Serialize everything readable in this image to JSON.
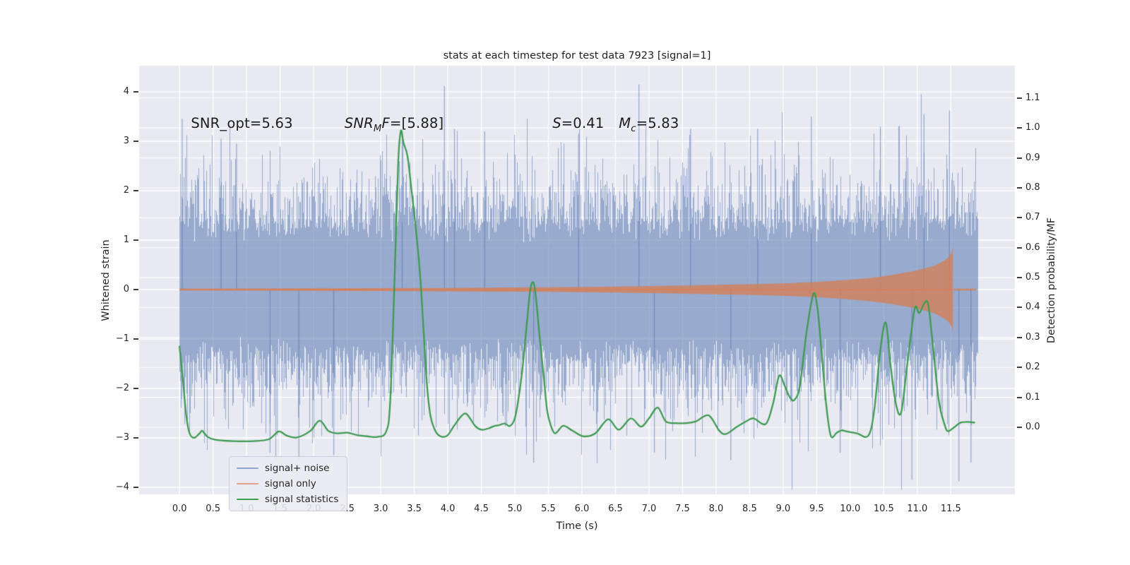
{
  "chart_data": {
    "type": "line",
    "title": "stats at each timestep for test data 7923 [signal=1]",
    "xlabel": "Time (s)",
    "ylabel_left": "Whitened strain",
    "ylabel_right": "Detection probability/MF",
    "axes": {
      "xlim": [
        -0.602,
        12.455
      ],
      "ylim_left": [
        -4.143,
        4.529
      ],
      "ylim_right": [
        -0.224,
        1.208
      ],
      "grid": true,
      "panel_bg": "#e9e9f2",
      "grid_color": "#ffffff",
      "figure_bg": "#ffffff"
    },
    "x_ticks": {
      "values": [
        0,
        0.5,
        1,
        1.5,
        2,
        2.5,
        3,
        3.5,
        4,
        4.5,
        5,
        5.5,
        6,
        6.5,
        7,
        7.5,
        8,
        8.5,
        9,
        9.5,
        10,
        10.5,
        11,
        11.5
      ],
      "labels": [
        "0.0",
        "0.5",
        "1.0",
        "1.5",
        "2.0",
        "2.5",
        "3.0",
        "3.5",
        "4.0",
        "4.5",
        "5.0",
        "5.5",
        "6.0",
        "6.5",
        "7.0",
        "7.5",
        "8.0",
        "8.5",
        "9.0",
        "9.5",
        "10.0",
        "10.5",
        "11.0",
        "11.5"
      ]
    },
    "y_ticks_left": {
      "values": [
        4,
        3,
        2,
        1,
        0,
        -1,
        -2,
        -3,
        -4
      ],
      "labels": [
        "4",
        "3",
        "2",
        "1",
        "0",
        "−1",
        "−2",
        "−3",
        "−4"
      ]
    },
    "y_ticks_right": {
      "values": [
        1.1,
        1.0,
        0.9,
        0.8,
        0.7,
        0.6,
        0.5,
        0.4,
        0.3,
        0.2,
        0.1,
        0.0
      ],
      "labels": [
        "1.1",
        "1.0",
        "0.9",
        "0.8",
        "0.7",
        "0.6",
        "0.5",
        "0.4",
        "0.3",
        "0.2",
        "0.1",
        "0.0"
      ]
    },
    "annotations": [
      {
        "id": "snr-opt",
        "t": 0.17,
        "strain": 3.38,
        "parts": [
          {
            "text": "SNR_opt=5.63",
            "italic": false,
            "sub": false
          }
        ]
      },
      {
        "id": "snr-mf",
        "t": 2.46,
        "strain": 3.38,
        "parts": [
          {
            "text": "SNR",
            "italic": true,
            "sub": false
          },
          {
            "text": "M",
            "italic": true,
            "sub": true
          },
          {
            "text": "F",
            "italic": true,
            "sub": false
          },
          {
            "text": "=[5.88]",
            "italic": false,
            "sub": false
          }
        ]
      },
      {
        "id": "s-value",
        "t": 5.56,
        "strain": 3.38,
        "parts": [
          {
            "text": "S",
            "italic": true,
            "sub": false
          },
          {
            "text": "=0.41",
            "italic": false,
            "sub": false
          }
        ]
      },
      {
        "id": "m-chirp",
        "t": 6.55,
        "strain": 3.38,
        "parts": [
          {
            "text": "M",
            "italic": true,
            "sub": false
          },
          {
            "text": "c",
            "italic": true,
            "sub": true
          },
          {
            "text": "=5.83",
            "italic": false,
            "sub": false
          }
        ]
      }
    ],
    "legend": [
      {
        "label": "signal+ noise",
        "color": "#8fa7cf"
      },
      {
        "label": "signal only",
        "color": "#e0a189"
      },
      {
        "label": "signal statistics",
        "color": "#3f9b52"
      }
    ],
    "series": {
      "noise": {
        "name": "signal+ noise",
        "color": "rgba(86,118,177,0.55)",
        "t_start": 0.0,
        "t_end": 11.9,
        "sigma": 1.0,
        "core_band": [
          0.95,
          1.45
        ],
        "seed": 7923,
        "samples_per_column": 12,
        "notable_spikes": [
          [
            0.04,
            3.45
          ],
          [
            0.62,
            3.05
          ],
          [
            0.85,
            2.95
          ],
          [
            1.35,
            -3.3
          ],
          [
            1.78,
            -3.45
          ],
          [
            2.3,
            -3.35
          ],
          [
            3.32,
            3.2
          ],
          [
            3.95,
            4.12
          ],
          [
            4.1,
            3.25
          ],
          [
            4.55,
            3.2
          ],
          [
            5.28,
            -3.5
          ],
          [
            5.95,
            3.15
          ],
          [
            6.85,
            4.15
          ],
          [
            7.08,
            -3.3
          ],
          [
            7.62,
            3.25
          ],
          [
            8.22,
            -3.45
          ],
          [
            8.62,
            3.25
          ],
          [
            9.42,
            3.5
          ],
          [
            9.85,
            -3.3
          ],
          [
            10.45,
            3.3
          ],
          [
            10.92,
            -3.85
          ],
          [
            11.1,
            3.55
          ],
          [
            11.48,
            3.62
          ],
          [
            11.62,
            -3.88
          ],
          [
            11.8,
            -3.5
          ]
        ]
      },
      "signal": {
        "name": "signal only",
        "line_color": "rgba(213,128,87,0.85)",
        "fill_color": "rgba(213,128,87,0.8)",
        "center_strain": 0.0,
        "cutoff_t": 11.53,
        "envelope_half_amplitude": [
          [
            0,
            0.018
          ],
          [
            1,
            0.02
          ],
          [
            2,
            0.024
          ],
          [
            3,
            0.028
          ],
          [
            4,
            0.034
          ],
          [
            5,
            0.042
          ],
          [
            5.5,
            0.048
          ],
          [
            6,
            0.055
          ],
          [
            6.5,
            0.062
          ],
          [
            7,
            0.072
          ],
          [
            7.5,
            0.082
          ],
          [
            8,
            0.095
          ],
          [
            8.5,
            0.108
          ],
          [
            9,
            0.125
          ],
          [
            9.5,
            0.155
          ],
          [
            10,
            0.2
          ],
          [
            10.3,
            0.235
          ],
          [
            10.6,
            0.29
          ],
          [
            10.9,
            0.36
          ],
          [
            11.1,
            0.42
          ],
          [
            11.25,
            0.48
          ],
          [
            11.35,
            0.545
          ],
          [
            11.42,
            0.6
          ],
          [
            11.47,
            0.66
          ],
          [
            11.5,
            0.72
          ],
          [
            11.52,
            0.79
          ],
          [
            11.53,
            0.86
          ]
        ],
        "post_merger_tail": {
          "t_end": 11.88,
          "half_amplitude": 0.012
        }
      },
      "stats": {
        "name": "signal statistics",
        "color": "#3f9b52",
        "axis": "right",
        "points": [
          [
            0.0,
            0.27
          ],
          [
            0.05,
            0.16
          ],
          [
            0.1,
            0.04
          ],
          [
            0.15,
            -0.02
          ],
          [
            0.22,
            -0.035
          ],
          [
            0.3,
            -0.02
          ],
          [
            0.34,
            -0.012
          ],
          [
            0.42,
            -0.032
          ],
          [
            0.55,
            -0.042
          ],
          [
            0.8,
            -0.046
          ],
          [
            1.1,
            -0.046
          ],
          [
            1.33,
            -0.04
          ],
          [
            1.48,
            -0.014
          ],
          [
            1.6,
            -0.028
          ],
          [
            1.75,
            -0.034
          ],
          [
            1.95,
            -0.012
          ],
          [
            2.09,
            0.022
          ],
          [
            2.22,
            -0.012
          ],
          [
            2.35,
            -0.02
          ],
          [
            2.5,
            -0.018
          ],
          [
            2.65,
            -0.026
          ],
          [
            2.8,
            -0.03
          ],
          [
            2.95,
            -0.032
          ],
          [
            3.08,
            -0.015
          ],
          [
            3.14,
            0.08
          ],
          [
            3.2,
            0.45
          ],
          [
            3.26,
            0.88
          ],
          [
            3.3,
            0.99
          ],
          [
            3.34,
            0.95
          ],
          [
            3.4,
            0.905
          ],
          [
            3.46,
            0.79
          ],
          [
            3.53,
            0.65
          ],
          [
            3.59,
            0.5
          ],
          [
            3.64,
            0.32
          ],
          [
            3.69,
            0.14
          ],
          [
            3.74,
            0.04
          ],
          [
            3.8,
            -0.005
          ],
          [
            3.88,
            -0.029
          ],
          [
            3.99,
            -0.028
          ],
          [
            4.09,
            0.004
          ],
          [
            4.2,
            0.037
          ],
          [
            4.27,
            0.046
          ],
          [
            4.34,
            0.027
          ],
          [
            4.41,
            0.004
          ],
          [
            4.5,
            -0.008
          ],
          [
            4.6,
            -0.004
          ],
          [
            4.69,
            0.004
          ],
          [
            4.76,
            0.007
          ],
          [
            4.85,
            0.013
          ],
          [
            4.92,
            0.004
          ],
          [
            4.99,
            0.024
          ],
          [
            5.04,
            0.075
          ],
          [
            5.11,
            0.19
          ],
          [
            5.18,
            0.35
          ],
          [
            5.23,
            0.46
          ],
          [
            5.28,
            0.483
          ],
          [
            5.32,
            0.42
          ],
          [
            5.37,
            0.3
          ],
          [
            5.43,
            0.17
          ],
          [
            5.48,
            0.058
          ],
          [
            5.53,
            0.01
          ],
          [
            5.6,
            -0.02
          ],
          [
            5.72,
            0.005
          ],
          [
            5.85,
            -0.01
          ],
          [
            6.02,
            -0.03
          ],
          [
            6.2,
            -0.02
          ],
          [
            6.39,
            0.027
          ],
          [
            6.55,
            -0.008
          ],
          [
            6.73,
            0.03
          ],
          [
            6.88,
            0.002
          ],
          [
            7.0,
            0.03
          ],
          [
            7.13,
            0.066
          ],
          [
            7.25,
            0.02
          ],
          [
            7.4,
            0.014
          ],
          [
            7.55,
            0.014
          ],
          [
            7.7,
            0.02
          ],
          [
            7.89,
            0.04
          ],
          [
            8.05,
            -0.012
          ],
          [
            8.15,
            -0.022
          ],
          [
            8.3,
            0.0
          ],
          [
            8.45,
            0.02
          ],
          [
            8.56,
            0.03
          ],
          [
            8.74,
            0.011
          ],
          [
            8.85,
            0.08
          ],
          [
            8.94,
            0.172
          ],
          [
            9.02,
            0.14
          ],
          [
            9.1,
            0.1
          ],
          [
            9.17,
            0.092
          ],
          [
            9.25,
            0.14
          ],
          [
            9.35,
            0.32
          ],
          [
            9.45,
            0.445
          ],
          [
            9.51,
            0.4
          ],
          [
            9.57,
            0.26
          ],
          [
            9.64,
            0.08
          ],
          [
            9.71,
            -0.028
          ],
          [
            9.8,
            -0.018
          ],
          [
            9.87,
            -0.01
          ],
          [
            9.95,
            -0.014
          ],
          [
            10.1,
            -0.02
          ],
          [
            10.27,
            -0.028
          ],
          [
            10.36,
            0.06
          ],
          [
            10.45,
            0.26
          ],
          [
            10.53,
            0.35
          ],
          [
            10.6,
            0.21
          ],
          [
            10.68,
            0.08
          ],
          [
            10.76,
            0.05
          ],
          [
            10.85,
            0.21
          ],
          [
            10.96,
            0.395
          ],
          [
            11.03,
            0.382
          ],
          [
            11.15,
            0.42
          ],
          [
            11.22,
            0.3
          ],
          [
            11.32,
            0.09
          ],
          [
            11.41,
            0.007
          ],
          [
            11.46,
            -0.013
          ],
          [
            11.55,
            0.0
          ],
          [
            11.64,
            0.015
          ],
          [
            11.75,
            0.018
          ],
          [
            11.85,
            0.016
          ]
        ]
      }
    }
  }
}
